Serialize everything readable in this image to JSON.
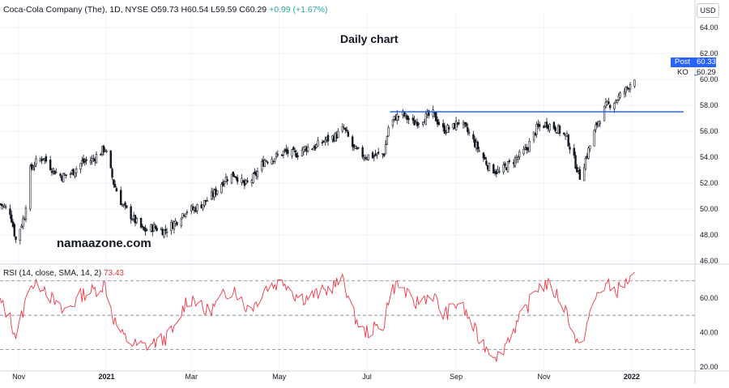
{
  "header": {
    "symbol": "Coca-Cola Company (The), 1D, NYSE",
    "open": "O59.73",
    "high": "H60.54",
    "low": "L59.59",
    "close": "C60.29",
    "change": "+0.99 (+1.67%)"
  },
  "currency_label": "USD",
  "annotation_title": "Daily chart",
  "watermark": "namaazone.com",
  "post_badge": {
    "label": "Post",
    "value": "60.33",
    "color": "#2962ff"
  },
  "ko_badge": {
    "label": "KO",
    "value": "60.29"
  },
  "rsi_header": {
    "label": "RSI (14, close, SMA, 14, 2)",
    "value": "73.43"
  },
  "colors": {
    "rsi_line": "#f23645",
    "resistance_line": "#2962ff",
    "candle": "#131722",
    "grid": "#f0f3fa"
  },
  "chart_data": [
    {
      "type": "candlestick",
      "title": "Coca-Cola Company (The), 1D, NYSE",
      "y_ticks": [
        "46.00",
        "48.00",
        "50.00",
        "52.00",
        "54.00",
        "56.00",
        "58.00",
        "60.00",
        "62.00",
        "64.00"
      ],
      "ylim": [
        46,
        65
      ],
      "x_ticks": [
        "Nov",
        "2021",
        "Mar",
        "May",
        "Jul",
        "Sep",
        "Nov",
        "2022"
      ],
      "x_tick_dates": [
        "2020-11-01",
        "2021-01-01",
        "2021-03-01",
        "2021-05-01",
        "2021-07-01",
        "2021-09-01",
        "2021-11-01",
        "2022-01-01"
      ],
      "xlim": [
        "2020-10-19",
        "2022-02-14"
      ],
      "close_path": [
        [
          "2020-10-19",
          50.4
        ],
        [
          "2020-10-26",
          49.8
        ],
        [
          "2020-10-30",
          47.6
        ],
        [
          "2020-11-05",
          49.5
        ],
        [
          "2020-11-09",
          53.0
        ],
        [
          "2020-11-12",
          53.5
        ],
        [
          "2020-11-18",
          54.0
        ],
        [
          "2020-11-25",
          53.0
        ],
        [
          "2020-12-01",
          52.5
        ],
        [
          "2020-12-08",
          52.8
        ],
        [
          "2020-12-15",
          53.6
        ],
        [
          "2020-12-22",
          53.8
        ],
        [
          "2020-12-31",
          54.7
        ],
        [
          "2021-01-06",
          52.0
        ],
        [
          "2021-01-12",
          50.3
        ],
        [
          "2021-01-20",
          49.2
        ],
        [
          "2021-01-27",
          48.3
        ],
        [
          "2021-02-03",
          48.6
        ],
        [
          "2021-02-10",
          48.3
        ],
        [
          "2021-02-18",
          49.0
        ],
        [
          "2021-02-25",
          49.9
        ],
        [
          "2021-03-03",
          50.0
        ],
        [
          "2021-03-10",
          50.5
        ],
        [
          "2021-03-17",
          51.2
        ],
        [
          "2021-03-24",
          52.3
        ],
        [
          "2021-03-31",
          52.7
        ],
        [
          "2021-04-07",
          51.8
        ],
        [
          "2021-04-14",
          52.5
        ],
        [
          "2021-04-21",
          53.8
        ],
        [
          "2021-04-28",
          54.0
        ],
        [
          "2021-05-05",
          54.4
        ],
        [
          "2021-05-12",
          54.2
        ],
        [
          "2021-05-19",
          54.7
        ],
        [
          "2021-05-26",
          54.8
        ],
        [
          "2021-06-02",
          55.3
        ],
        [
          "2021-06-09",
          55.6
        ],
        [
          "2021-06-15",
          56.2
        ],
        [
          "2021-06-22",
          54.6
        ],
        [
          "2021-06-29",
          54.1
        ],
        [
          "2021-07-06",
          54.1
        ],
        [
          "2021-07-13",
          54.3
        ],
        [
          "2021-07-16",
          56.3
        ],
        [
          "2021-07-21",
          57.1
        ],
        [
          "2021-07-26",
          57.3
        ],
        [
          "2021-08-02",
          56.6
        ],
        [
          "2021-08-09",
          57.0
        ],
        [
          "2021-08-16",
          57.3
        ],
        [
          "2021-08-23",
          56.1
        ],
        [
          "2021-08-30",
          56.3
        ],
        [
          "2021-09-03",
          56.8
        ],
        [
          "2021-09-10",
          55.8
        ],
        [
          "2021-09-17",
          54.5
        ],
        [
          "2021-09-24",
          53.2
        ],
        [
          "2021-10-01",
          52.8
        ],
        [
          "2021-10-08",
          53.5
        ],
        [
          "2021-10-14",
          54.0
        ],
        [
          "2021-10-20",
          54.6
        ],
        [
          "2021-10-27",
          56.2
        ],
        [
          "2021-11-03",
          56.6
        ],
        [
          "2021-11-10",
          56.2
        ],
        [
          "2021-11-17",
          55.5
        ],
        [
          "2021-11-22",
          53.8
        ],
        [
          "2021-11-26",
          52.5
        ],
        [
          "2021-12-01",
          54.2
        ],
        [
          "2021-12-08",
          56.6
        ],
        [
          "2021-12-14",
          57.9
        ],
        [
          "2021-12-21",
          58.4
        ],
        [
          "2021-12-28",
          59.2
        ],
        [
          "2022-01-03",
          60.2
        ]
      ],
      "resistance_line": {
        "level": 57.5,
        "from": "2021-07-17",
        "to": "2022-02-06"
      },
      "last_values": {
        "Post": 60.33,
        "KO": 60.29
      }
    },
    {
      "type": "line",
      "title": "RSI (14, close, SMA, 14, 2)",
      "y_ticks": [
        "20.00",
        "40.00",
        "60.00"
      ],
      "ylim": [
        19,
        76
      ],
      "bands": [
        30,
        50,
        70
      ],
      "xlim": [
        "2020-10-19",
        "2022-02-14"
      ],
      "series": [
        {
          "name": "RSI (14, close, SMA, 14, 2)",
          "last": 73.43,
          "points": [
            [
              "2020-10-19",
              58
            ],
            [
              "2020-10-26",
              48
            ],
            [
              "2020-10-30",
              38
            ],
            [
              "2020-11-05",
              55
            ],
            [
              "2020-11-09",
              70
            ],
            [
              "2020-11-12",
              66
            ],
            [
              "2020-11-18",
              68
            ],
            [
              "2020-11-25",
              58
            ],
            [
              "2020-12-01",
              52
            ],
            [
              "2020-12-08",
              56
            ],
            [
              "2020-12-15",
              62
            ],
            [
              "2020-12-22",
              64
            ],
            [
              "2020-12-31",
              68
            ],
            [
              "2021-01-06",
              48
            ],
            [
              "2021-01-12",
              38
            ],
            [
              "2021-01-20",
              33
            ],
            [
              "2021-01-27",
              32
            ],
            [
              "2021-02-03",
              34
            ],
            [
              "2021-02-10",
              36
            ],
            [
              "2021-02-18",
              42
            ],
            [
              "2021-02-25",
              58
            ],
            [
              "2021-03-03",
              60
            ],
            [
              "2021-03-10",
              52
            ],
            [
              "2021-03-17",
              55
            ],
            [
              "2021-03-24",
              62
            ],
            [
              "2021-03-31",
              66
            ],
            [
              "2021-04-07",
              55
            ],
            [
              "2021-04-14",
              56
            ],
            [
              "2021-04-21",
              66
            ],
            [
              "2021-04-28",
              68
            ],
            [
              "2021-05-05",
              70
            ],
            [
              "2021-05-12",
              62
            ],
            [
              "2021-05-19",
              60
            ],
            [
              "2021-05-26",
              62
            ],
            [
              "2021-06-02",
              64
            ],
            [
              "2021-06-09",
              68
            ],
            [
              "2021-06-15",
              70
            ],
            [
              "2021-06-22",
              50
            ],
            [
              "2021-06-29",
              40
            ],
            [
              "2021-07-06",
              42
            ],
            [
              "2021-07-13",
              45
            ],
            [
              "2021-07-16",
              60
            ],
            [
              "2021-07-21",
              68
            ],
            [
              "2021-07-26",
              66
            ],
            [
              "2021-08-02",
              56
            ],
            [
              "2021-08-09",
              60
            ],
            [
              "2021-08-16",
              62
            ],
            [
              "2021-08-23",
              50
            ],
            [
              "2021-08-30",
              54
            ],
            [
              "2021-09-03",
              58
            ],
            [
              "2021-09-10",
              48
            ],
            [
              "2021-09-17",
              36
            ],
            [
              "2021-09-24",
              30
            ],
            [
              "2021-10-01",
              26
            ],
            [
              "2021-10-08",
              38
            ],
            [
              "2021-10-14",
              46
            ],
            [
              "2021-10-20",
              54
            ],
            [
              "2021-10-27",
              66
            ],
            [
              "2021-11-03",
              68
            ],
            [
              "2021-11-10",
              62
            ],
            [
              "2021-11-17",
              52
            ],
            [
              "2021-11-22",
              38
            ],
            [
              "2021-11-26",
              30
            ],
            [
              "2021-12-01",
              45
            ],
            [
              "2021-12-08",
              62
            ],
            [
              "2021-12-14",
              68
            ],
            [
              "2021-12-21",
              64
            ],
            [
              "2021-12-28",
              69
            ],
            [
              "2022-01-03",
              73.43
            ]
          ]
        }
      ]
    }
  ]
}
